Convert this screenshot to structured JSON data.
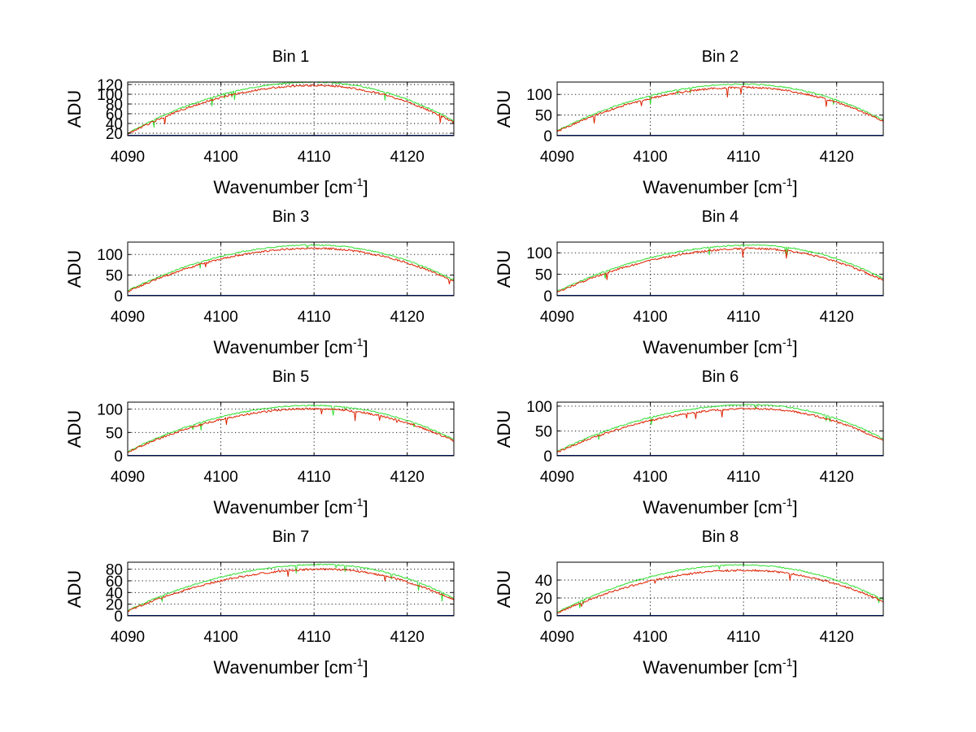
{
  "chart_data": [
    {
      "type": "line",
      "title": "Bin 1",
      "xlabel": "Wavenumber [cm",
      "xlabel_sup": "-1",
      "xlabel_end": "]",
      "ylabel": "ADU",
      "xlim": [
        4090,
        4125
      ],
      "ylim": [
        15,
        125
      ],
      "xticks": [
        4090,
        4100,
        4110,
        4120
      ],
      "yticks": [
        20,
        40,
        60,
        80,
        100,
        120
      ],
      "grid": true,
      "peak_x": 4110,
      "series": [
        {
          "name": "green",
          "color": "#33dd33",
          "start": 20,
          "peak": 125,
          "end": 45
        },
        {
          "name": "red",
          "color": "#dd2200",
          "start": 18,
          "peak": 118,
          "end": 42
        },
        {
          "name": "blue",
          "color": "#0022aa",
          "start": 15,
          "peak": 15,
          "end": 15
        }
      ]
    },
    {
      "type": "line",
      "title": "Bin 2",
      "xlabel": "Wavenumber [cm",
      "xlabel_sup": "-1",
      "xlabel_end": "]",
      "ylabel": "ADU",
      "xlim": [
        4090,
        4125
      ],
      "ylim": [
        0,
        130
      ],
      "xticks": [
        4090,
        4100,
        4110,
        4120
      ],
      "yticks": [
        0,
        50,
        100
      ],
      "grid": true,
      "peak_x": 4110,
      "series": [
        {
          "name": "green",
          "color": "#33dd33",
          "start": 12,
          "peak": 125,
          "end": 38
        },
        {
          "name": "red",
          "color": "#dd2200",
          "start": 10,
          "peak": 117,
          "end": 35
        },
        {
          "name": "blue",
          "color": "#0022aa",
          "start": 0,
          "peak": 0,
          "end": 0
        }
      ]
    },
    {
      "type": "line",
      "title": "Bin 3",
      "xlabel": "Wavenumber [cm",
      "xlabel_sup": "-1",
      "xlabel_end": "]",
      "ylabel": "ADU",
      "xlim": [
        4090,
        4125
      ],
      "ylim": [
        0,
        130
      ],
      "xticks": [
        4090,
        4100,
        4110,
        4120
      ],
      "yticks": [
        0,
        50,
        100
      ],
      "grid": true,
      "peak_x": 4110,
      "series": [
        {
          "name": "green",
          "color": "#33dd33",
          "start": 12,
          "peak": 123,
          "end": 38
        },
        {
          "name": "red",
          "color": "#dd2200",
          "start": 10,
          "peak": 115,
          "end": 35
        },
        {
          "name": "blue",
          "color": "#0022aa",
          "start": 0,
          "peak": 0,
          "end": 0
        }
      ]
    },
    {
      "type": "line",
      "title": "Bin 4",
      "xlabel": "Wavenumber [cm",
      "xlabel_sup": "-1",
      "xlabel_end": "]",
      "ylabel": "ADU",
      "xlim": [
        4090,
        4125
      ],
      "ylim": [
        0,
        125
      ],
      "xticks": [
        4090,
        4100,
        4110,
        4120
      ],
      "yticks": [
        0,
        50,
        100
      ],
      "grid": true,
      "peak_x": 4111,
      "series": [
        {
          "name": "green",
          "color": "#33dd33",
          "start": 10,
          "peak": 118,
          "end": 40
        },
        {
          "name": "red",
          "color": "#dd2200",
          "start": 8,
          "peak": 110,
          "end": 35
        },
        {
          "name": "blue",
          "color": "#0022aa",
          "start": 0,
          "peak": 0,
          "end": 0
        }
      ]
    },
    {
      "type": "line",
      "title": "Bin 5",
      "xlabel": "Wavenumber [cm",
      "xlabel_sup": "-1",
      "xlabel_end": "]",
      "ylabel": "ADU",
      "xlim": [
        4090,
        4125
      ],
      "ylim": [
        0,
        115
      ],
      "xticks": [
        4090,
        4100,
        4110,
        4120
      ],
      "yticks": [
        0,
        50,
        100
      ],
      "grid": true,
      "peak_x": 4110,
      "series": [
        {
          "name": "green",
          "color": "#33dd33",
          "start": 9,
          "peak": 108,
          "end": 35
        },
        {
          "name": "red",
          "color": "#dd2200",
          "start": 8,
          "peak": 101,
          "end": 32
        },
        {
          "name": "blue",
          "color": "#0022aa",
          "start": 0,
          "peak": 0,
          "end": 0
        }
      ]
    },
    {
      "type": "line",
      "title": "Bin 6",
      "xlabel": "Wavenumber [cm",
      "xlabel_sup": "-1",
      "xlabel_end": "]",
      "ylabel": "ADU",
      "xlim": [
        4090,
        4125
      ],
      "ylim": [
        0,
        108
      ],
      "xticks": [
        4090,
        4100,
        4110,
        4120
      ],
      "yticks": [
        0,
        50,
        100
      ],
      "grid": true,
      "peak_x": 4111,
      "series": [
        {
          "name": "green",
          "color": "#33dd33",
          "start": 9,
          "peak": 103,
          "end": 34
        },
        {
          "name": "red",
          "color": "#dd2200",
          "start": 7,
          "peak": 95,
          "end": 30
        },
        {
          "name": "blue",
          "color": "#0022aa",
          "start": 0,
          "peak": 0,
          "end": 0
        }
      ]
    },
    {
      "type": "line",
      "title": "Bin 7",
      "xlabel": "Wavenumber [cm",
      "xlabel_sup": "-1",
      "xlabel_end": "]",
      "ylabel": "ADU",
      "xlim": [
        4090,
        4125
      ],
      "ylim": [
        0,
        92
      ],
      "xticks": [
        4090,
        4100,
        4110,
        4120
      ],
      "yticks": [
        0,
        20,
        40,
        60,
        80
      ],
      "grid": true,
      "peak_x": 4111,
      "series": [
        {
          "name": "green",
          "color": "#33dd33",
          "start": 9,
          "peak": 88,
          "end": 30
        },
        {
          "name": "red",
          "color": "#dd2200",
          "start": 8,
          "peak": 80,
          "end": 27
        },
        {
          "name": "blue",
          "color": "#0022aa",
          "start": 0,
          "peak": 0,
          "end": 0
        }
      ]
    },
    {
      "type": "line",
      "title": "Bin 8",
      "xlabel": "Wavenumber [cm",
      "xlabel_sup": "-1",
      "xlabel_end": "]",
      "ylabel": "ADU",
      "xlim": [
        4090,
        4125
      ],
      "ylim": [
        0,
        60
      ],
      "xticks": [
        4090,
        4100,
        4110,
        4120
      ],
      "yticks": [
        0,
        20,
        40
      ],
      "grid": true,
      "peak_x": 4110,
      "series": [
        {
          "name": "green",
          "color": "#33dd33",
          "start": 4,
          "peak": 57,
          "end": 18
        },
        {
          "name": "red",
          "color": "#dd2200",
          "start": 3,
          "peak": 51,
          "end": 16
        },
        {
          "name": "blue",
          "color": "#0022aa",
          "start": 0,
          "peak": 0,
          "end": 0
        }
      ]
    }
  ]
}
